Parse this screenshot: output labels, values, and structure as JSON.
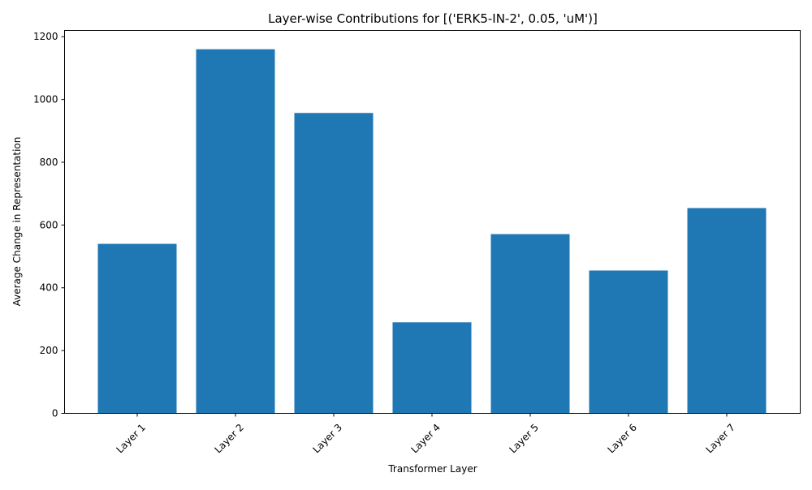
{
  "chart_data": {
    "type": "bar",
    "title": "Layer-wise Contributions for [('ERK5-IN-2', 0.05, 'uM')]",
    "xlabel": "Transformer Layer",
    "ylabel": "Average Change in Representation",
    "categories": [
      "Layer 1",
      "Layer 2",
      "Layer 3",
      "Layer 4",
      "Layer 5",
      "Layer 6",
      "Layer 7"
    ],
    "values": [
      540,
      1160,
      957,
      290,
      571,
      455,
      654
    ],
    "ylim": [
      0,
      1220
    ],
    "yticks": [
      0,
      200,
      400,
      600,
      800,
      1000,
      1200
    ],
    "grid": false,
    "bar_color": "#1f77b4",
    "xtick_rotation": "45 degrees"
  }
}
